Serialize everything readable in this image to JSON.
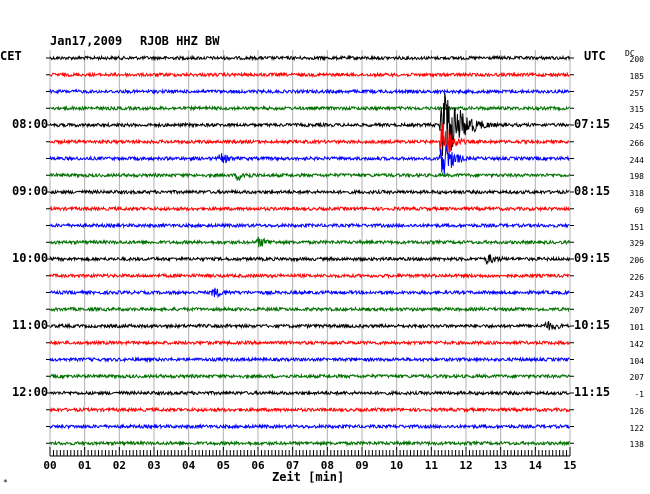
{
  "header": {
    "date": "Jan17,2009",
    "station": "RJOB HHZ BW",
    "left_tz": "CET",
    "right_tz": "UTC",
    "dc_label": "DC"
  },
  "footer": {
    "mark": "*"
  },
  "chart_data": {
    "type": "line",
    "title": "Jan17,2009   RJOB HHZ BW",
    "xlabel": "Zeit [min]",
    "xlim": [
      0,
      15
    ],
    "x_ticks": [
      "00",
      "01",
      "02",
      "03",
      "04",
      "05",
      "06",
      "07",
      "08",
      "09",
      "10",
      "11",
      "12",
      "13",
      "14",
      "15"
    ],
    "left_time_labels": [
      {
        "row": 4,
        "label": "08:00"
      },
      {
        "row": 8,
        "label": "09:00"
      },
      {
        "row": 12,
        "label": "10:00"
      },
      {
        "row": 16,
        "label": "11:00"
      },
      {
        "row": 20,
        "label": "12:00"
      }
    ],
    "right_time_labels": [
      {
        "row": 4,
        "label": "07:15"
      },
      {
        "row": 8,
        "label": "08:15"
      },
      {
        "row": 12,
        "label": "09:15"
      },
      {
        "row": 16,
        "label": "10:15"
      },
      {
        "row": 20,
        "label": "11:15"
      }
    ],
    "trace_colors": [
      "#000000",
      "#ff0000",
      "#0000ff",
      "#007000"
    ],
    "dc_offsets": [
      "200",
      "185",
      "257",
      "315",
      "245",
      "266",
      "244",
      "198",
      "318",
      "69",
      "151",
      "329",
      "206",
      "226",
      "243",
      "207",
      "101",
      "142",
      "104",
      "207",
      "-1",
      "126",
      "122",
      "138"
    ],
    "events": [
      {
        "row": 4,
        "minute": 11.3,
        "amplitude": "large"
      },
      {
        "row": 5,
        "minute": 11.3,
        "amplitude": "medium"
      },
      {
        "row": 6,
        "minute": 11.3,
        "amplitude": "medium"
      },
      {
        "row": 6,
        "minute": 4.9,
        "amplitude": "small"
      },
      {
        "row": 7,
        "minute": 5.4,
        "amplitude": "small"
      },
      {
        "row": 11,
        "minute": 6.0,
        "amplitude": "small"
      },
      {
        "row": 12,
        "minute": 12.6,
        "amplitude": "small"
      },
      {
        "row": 14,
        "minute": 4.7,
        "amplitude": "small"
      },
      {
        "row": 16,
        "minute": 14.3,
        "amplitude": "small"
      }
    ]
  }
}
